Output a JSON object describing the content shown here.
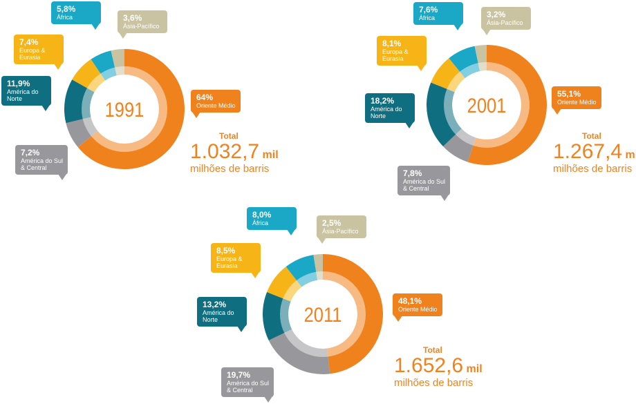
{
  "chart_data": [
    {
      "type": "donut",
      "title": "1991",
      "categories": [
        "Oriente Médio",
        "América do Sul & Central",
        "América do Norte",
        "Europa & Eurasia",
        "África",
        "Ásia-Pacífico"
      ],
      "values": [
        64,
        7.2,
        11.9,
        7.4,
        5.8,
        3.6
      ],
      "value_labels": [
        "64%",
        "7,2%",
        "11,9%",
        "7,4%",
        "5,8%",
        "3,6%"
      ],
      "colors": [
        "#f0821e",
        "#98989c",
        "#0f6e80",
        "#f6b417",
        "#1aa8c6",
        "#c9c3a2"
      ],
      "total_title": "Total",
      "total": {
        "value": 1032.7,
        "label": "1.032,7"
      },
      "total_unit": "mil",
      "total_caption": "milhões de barris"
    },
    {
      "type": "donut",
      "title": "2001",
      "categories": [
        "Oriente Médio",
        "América do Sul & Central",
        "América do Norte",
        "Europa & Eurasia",
        "África",
        "Ásia-Pacífico"
      ],
      "values": [
        55.1,
        7.8,
        18.2,
        8.1,
        7.6,
        3.2
      ],
      "value_labels": [
        "55,1%",
        "7,8%",
        "18,2%",
        "8,1%",
        "7,6%",
        "3,2%"
      ],
      "colors": [
        "#f0821e",
        "#98989c",
        "#0f6e80",
        "#f6b417",
        "#1aa8c6",
        "#c9c3a2"
      ],
      "total_title": "Total",
      "total": {
        "value": 1267.4,
        "label": "1.267,4"
      },
      "total_unit": "mil",
      "total_caption": "milhões de barris"
    },
    {
      "type": "donut",
      "title": "2011",
      "categories": [
        "Oriente Médio",
        "América do Sul & Central",
        "América do Norte",
        "Europa & Eurasia",
        "África",
        "Ásia-Pacífico"
      ],
      "values": [
        48.1,
        19.7,
        13.2,
        8.5,
        8.0,
        2.5
      ],
      "value_labels": [
        "48,1%",
        "19,7%",
        "13,2%",
        "8,5%",
        "8,0%",
        "2,5%"
      ],
      "colors": [
        "#f0821e",
        "#98989c",
        "#0f6e80",
        "#f6b417",
        "#1aa8c6",
        "#c9c3a2"
      ],
      "total_title": "Total",
      "total": {
        "value": 1652.6,
        "label": "1.652,6"
      },
      "total_unit": "mil",
      "total_caption": "milhões de barris"
    }
  ]
}
